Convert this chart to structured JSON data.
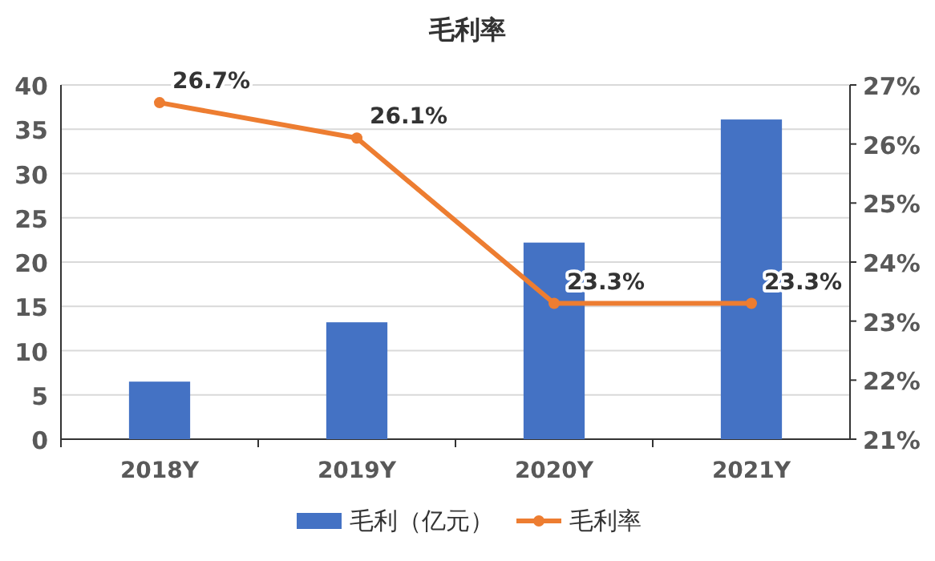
{
  "chart_data": {
    "type": "bar",
    "title": "毛利率",
    "categories": [
      "2018Y",
      "2019Y",
      "2020Y",
      "2021Y"
    ],
    "series": [
      {
        "name": "毛利（亿元）",
        "color": "#4472c4",
        "values": [
          6.5,
          13.2,
          22.2,
          36.1
        ]
      },
      {
        "name": "毛利率",
        "type": "line",
        "axis": "y2",
        "color": "#ed7d31",
        "values": [
          26.7,
          26.1,
          23.3,
          23.3
        ],
        "value_labels": [
          "26.7%",
          "26.1%",
          "23.3%",
          "23.3%"
        ]
      }
    ],
    "ylim": [
      0,
      40
    ],
    "yticks": [
      0,
      5,
      10,
      15,
      20,
      25,
      30,
      35,
      40
    ],
    "y2lim": [
      21,
      27
    ],
    "y2ticks": [
      {
        "value": 21,
        "label": "21%"
      },
      {
        "value": 22,
        "label": "22%"
      },
      {
        "value": 23,
        "label": "23%"
      },
      {
        "value": 24,
        "label": "24%"
      },
      {
        "value": 25,
        "label": "25%"
      },
      {
        "value": 26,
        "label": "26%"
      },
      {
        "value": 27,
        "label": "27%"
      }
    ],
    "grid": "y",
    "legend": "bottom",
    "marker": "circle",
    "line_style": "solid"
  }
}
